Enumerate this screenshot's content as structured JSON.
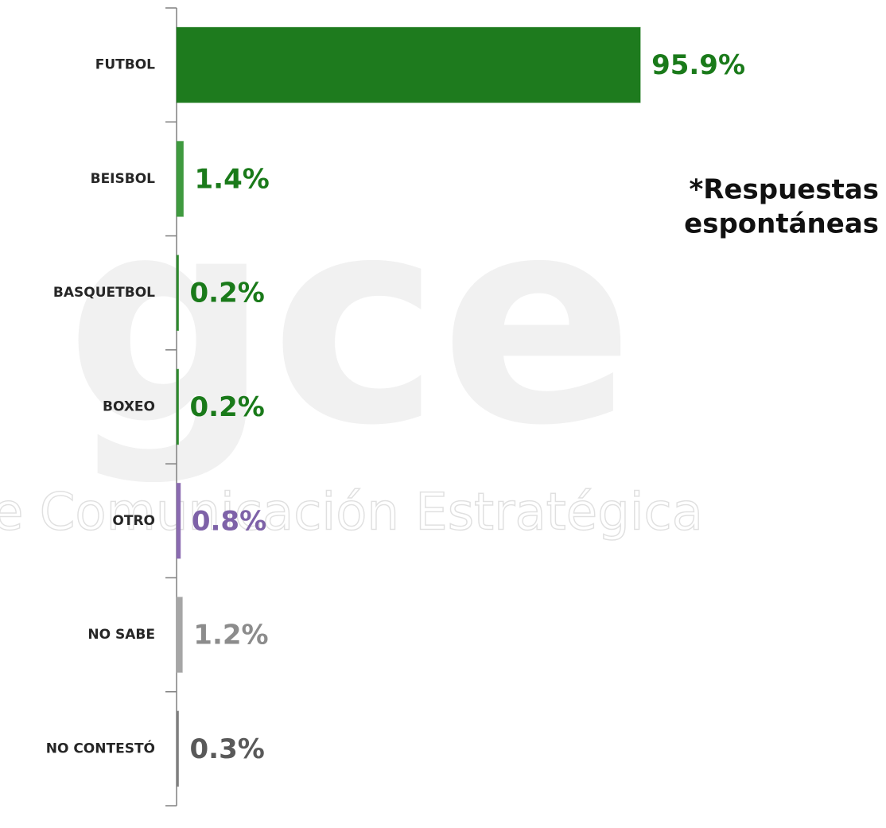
{
  "chart_data": {
    "type": "barh",
    "categories": [
      "FUTBOL",
      "BEISBOL",
      "BASQUETBOL",
      "BOXEO",
      "OTRO",
      "NO SABE",
      "NO CONTESTÓ"
    ],
    "values": [
      95.9,
      1.4,
      0.2,
      0.2,
      0.8,
      1.2,
      0.3
    ],
    "value_labels": [
      "95.9%",
      "1.4%",
      "0.2%",
      "0.2%",
      "0.8%",
      "1.2%",
      "0.3%"
    ],
    "colors": [
      "#1e7b1e",
      "#3f9a3f",
      "#2e8b2e",
      "#2e8b2e",
      "#8a6bb0",
      "#a6a6a6",
      "#7f7f7f"
    ],
    "label_colors": [
      "#1a7a1a",
      "#1a7a1a",
      "#1a7a1a",
      "#1a7a1a",
      "#7e62a8",
      "#8c8c8c",
      "#595959"
    ],
    "xlim": [
      0,
      100
    ],
    "annotation": [
      "*Respuestas",
      "espontáneas"
    ],
    "watermark": [
      "gce",
      "e Comunicación Estratégica"
    ]
  }
}
